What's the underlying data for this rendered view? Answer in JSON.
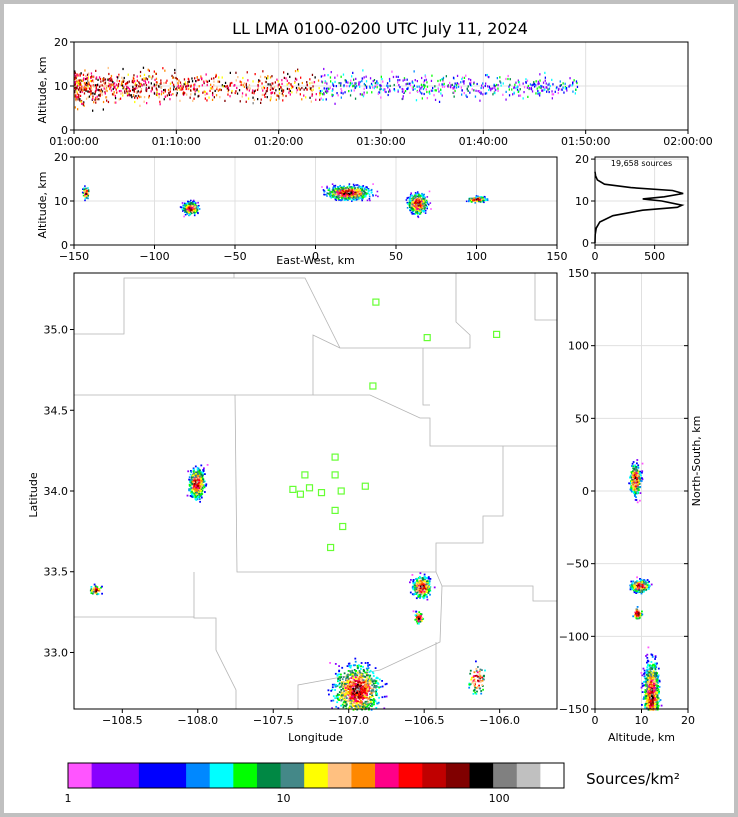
{
  "title": "LL LMA 0100-0200 UTC July 11, 2024",
  "colorbar_label": "Sources/km²",
  "chart_data": [
    {
      "type": "scatter",
      "panel": "altitude-vs-time",
      "ylabel": "Altitude, km",
      "xlim": [
        "01:00:00",
        "02:00:00"
      ],
      "ylim": [
        0,
        20
      ],
      "xticks": [
        "01:00:00",
        "01:10:00",
        "01:20:00",
        "01:30:00",
        "01:40:00",
        "01:50:00",
        "02:00:00"
      ],
      "yticks": [
        "0",
        "10",
        "20"
      ],
      "grid": true
    },
    {
      "type": "heatmap",
      "panel": "altitude-vs-east-west",
      "xlabel": "East-West, km",
      "ylabel": "Altitude, km",
      "xlim": [
        -150,
        150
      ],
      "ylim": [
        0,
        20
      ],
      "xticks": [
        "−150",
        "−100",
        "−50",
        "0",
        "50",
        "100",
        "150"
      ],
      "yticks": [
        "0",
        "10",
        "20"
      ],
      "grid": true
    },
    {
      "type": "line",
      "panel": "altitude-histogram",
      "annotation": "19,658 sources",
      "xlim": [
        0,
        780
      ],
      "ylim": [
        -0.5,
        20.5
      ],
      "xticks": [
        "0",
        "500"
      ],
      "yticks": [
        "0",
        "10",
        "20"
      ],
      "points": [
        [
          0,
          0
        ],
        [
          2,
          2
        ],
        [
          10,
          3.5
        ],
        [
          40,
          5
        ],
        [
          150,
          6.5
        ],
        [
          400,
          7.8
        ],
        [
          690,
          8.5
        ],
        [
          730,
          9
        ],
        [
          560,
          10
        ],
        [
          400,
          10.5
        ],
        [
          580,
          11
        ],
        [
          740,
          11.8
        ],
        [
          650,
          12.5
        ],
        [
          300,
          13.2
        ],
        [
          80,
          14
        ],
        [
          20,
          15
        ],
        [
          5,
          16
        ],
        [
          0,
          17
        ]
      ]
    },
    {
      "type": "heatmap",
      "panel": "plan-view-map",
      "xlabel": "Longitude",
      "ylabel": "Latitude",
      "xlim": [
        -108.82,
        -105.62
      ],
      "ylim": [
        32.65,
        35.35
      ],
      "xticks": [
        "−108.5",
        "−108.0",
        "−107.5",
        "−107.0",
        "−106.5",
        "−106.0"
      ],
      "yticks": [
        "33.0",
        "33.5",
        "34.0",
        "34.5",
        "35.0"
      ],
      "stations": [
        [
          -106.82,
          35.17
        ],
        [
          -106.48,
          34.95
        ],
        [
          -106.02,
          34.97
        ],
        [
          -106.84,
          34.65
        ],
        [
          -107.09,
          34.21
        ],
        [
          -107.29,
          34.1
        ],
        [
          -107.09,
          34.1
        ],
        [
          -107.37,
          34.01
        ],
        [
          -107.32,
          33.98
        ],
        [
          -107.26,
          34.02
        ],
        [
          -107.18,
          33.99
        ],
        [
          -107.05,
          34.0
        ],
        [
          -106.89,
          34.03
        ],
        [
          -107.09,
          33.88
        ],
        [
          -107.04,
          33.78
        ],
        [
          -107.12,
          33.65
        ]
      ],
      "storm_cells": [
        {
          "lon": -108.01,
          "lat": 34.05
        },
        {
          "lon": -106.52,
          "lat": 33.41
        },
        {
          "lon": -106.95,
          "lat": 32.77
        },
        {
          "lon": -108.68,
          "lat": 33.39
        }
      ]
    },
    {
      "type": "heatmap",
      "panel": "north-south-vs-altitude",
      "xlabel": "Altitude, km",
      "ylabel": "North-South, km",
      "xlim": [
        0,
        20
      ],
      "ylim": [
        -150,
        150
      ],
      "xticks": [
        "0",
        "10",
        "20"
      ],
      "yticks": [
        "−150",
        "−100",
        "−50",
        "0",
        "50",
        "100",
        "150"
      ],
      "grid": true
    },
    {
      "type": "colorbar",
      "scale": "log",
      "range": [
        1,
        200
      ],
      "tick_labels": [
        "1",
        "10",
        "100"
      ],
      "colors": [
        "#ff55ff",
        "#8800ff",
        "#8800ff",
        "#0000ff",
        "#0000ff",
        "#0088ff",
        "#00ffff",
        "#00ff00",
        "#008844",
        "#448888",
        "#ffff00",
        "#ffc080",
        "#ff8800",
        "#ff0088",
        "#ff0000",
        "#c00000",
        "#800000",
        "#000000",
        "#808080",
        "#c0c0c0",
        "#ffffff"
      ]
    }
  ]
}
